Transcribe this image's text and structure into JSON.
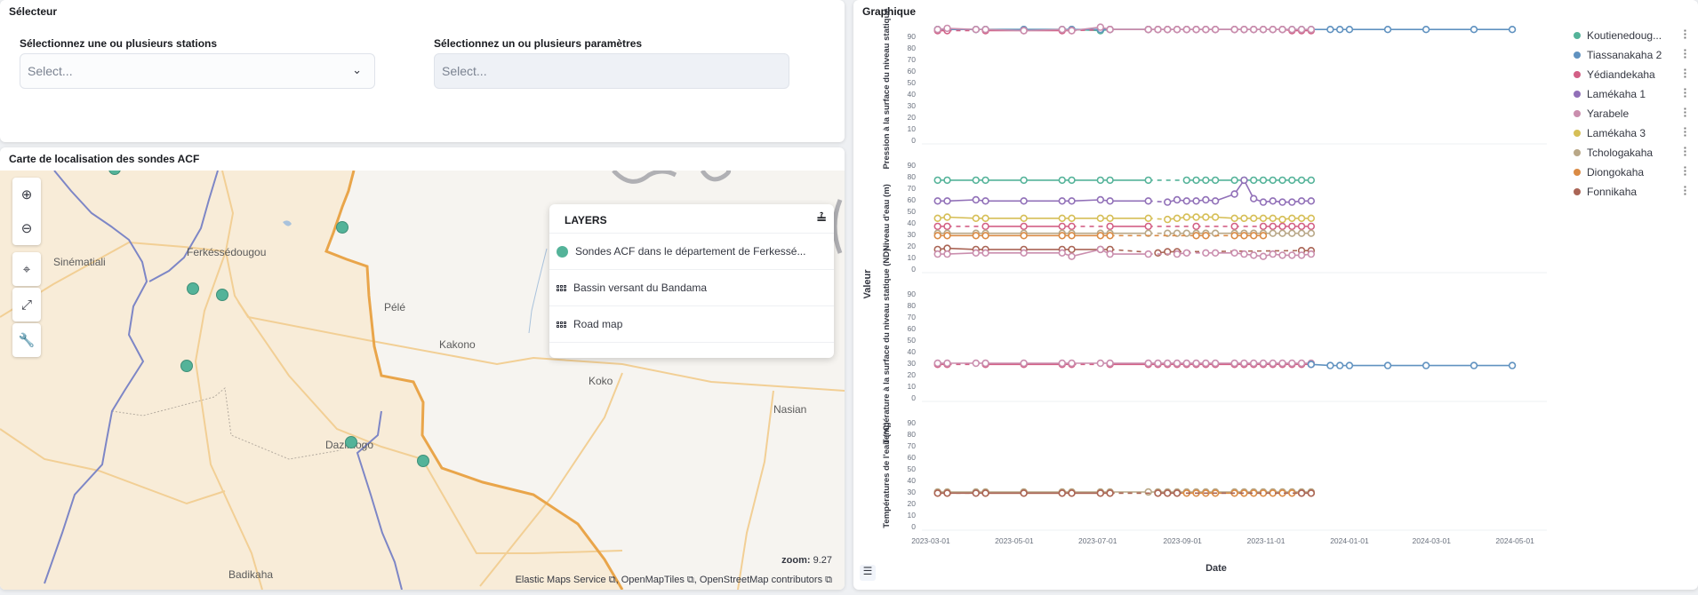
{
  "selector": {
    "title": "Sélecteur",
    "stations_label": "Sélectionnez une ou plusieurs stations",
    "stations_placeholder": "Select...",
    "params_label": "Sélectionnez un ou plusieurs paramètres",
    "params_placeholder": "Select..."
  },
  "map": {
    "title": "Carte de localisation des sondes ACF",
    "places": [
      "Sinématiali",
      "Ferkéssédougou",
      "Pélé",
      "Kakono",
      "Koko",
      "Nasian",
      "Dazimogo",
      "Badikaha"
    ],
    "layers_title": "LAYERS",
    "layers": [
      "Sondes ACF dans le département de Ferkessé...",
      "Bassin versant du Bandama",
      "Road map"
    ],
    "zoom_label": "zoom:",
    "zoom_value": "9.27",
    "attribution": [
      "Elastic Maps Service",
      "OpenMapTiles",
      "OpenStreetMap contributors"
    ],
    "point_color": "#54b399"
  },
  "graph": {
    "title": "Graphique"
  },
  "chart_data": {
    "type": "line",
    "xlabel": "Date",
    "ylabel": "Valeur",
    "xticks": [
      "2023-03-01",
      "2023-05-01",
      "2023-07-01",
      "2023-09-01",
      "2023-11-01",
      "2024-01-01",
      "2024-03-01",
      "2024-05-01"
    ],
    "xlim": [
      "2023-03-01",
      "2024-05-01"
    ],
    "dates": [
      "2023-03-06",
      "2023-03-13",
      "2023-04-03",
      "2023-04-10",
      "2023-05-08",
      "2023-06-05",
      "2023-06-12",
      "2023-07-03",
      "2023-07-10",
      "2023-08-07",
      "2023-08-14",
      "2023-08-21",
      "2023-08-28",
      "2023-09-04",
      "2023-09-11",
      "2023-09-18",
      "2023-09-25",
      "2023-10-09",
      "2023-10-16",
      "2023-10-23",
      "2023-10-30",
      "2023-11-06",
      "2023-11-13",
      "2023-11-20",
      "2023-11-27",
      "2023-12-04",
      "2023-12-18",
      "2023-12-25",
      "2024-01-01",
      "2024-01-29",
      "2024-02-26",
      "2024-04-01",
      "2024-04-29"
    ],
    "yticks": [
      0,
      10,
      20,
      30,
      40,
      50,
      60,
      70,
      80,
      90
    ],
    "legend": [
      {
        "name": "Koutienedoug...",
        "color": "#54b399"
      },
      {
        "name": "Tiassanakaha 2",
        "color": "#6092c0"
      },
      {
        "name": "Yédiandekaha",
        "color": "#d36086"
      },
      {
        "name": "Lamékaha 1",
        "color": "#9170b8"
      },
      {
        "name": "Yarabele",
        "color": "#ca8eae"
      },
      {
        "name": "Lamékaha 3",
        "color": "#d6bf57"
      },
      {
        "name": "Tchologakaha",
        "color": "#b9a888"
      },
      {
        "name": "Diongokaha",
        "color": "#da8b45"
      },
      {
        "name": "Fonnikaha",
        "color": "#aa6556"
      }
    ],
    "panels": [
      {
        "ylabel": "Pression à la surface du niveau statique",
        "ylim": [
          0,
          95
        ],
        "series": [
          {
            "name": "Koutienedoug...",
            "color": "#54b399",
            "values": [
              96,
              96,
              96,
              96,
              96,
              96,
              96,
              95,
              96,
              96
            ]
          },
          {
            "name": "Tiassanakaha 2",
            "color": "#6092c0",
            "values": [
              96,
              96,
              96,
              96,
              96,
              96,
              96,
              96,
              96,
              96,
              96,
              96,
              96,
              96,
              96,
              96,
              96,
              96,
              96,
              96,
              96,
              96,
              96,
              96,
              96,
              96,
              96,
              96,
              96,
              96,
              96,
              96,
              96
            ]
          },
          {
            "name": "Yédiandekaha",
            "color": "#d36086",
            "values": [
              95,
              95,
              null,
              95,
              95,
              95,
              95,
              null,
              96,
              96,
              96,
              96,
              96,
              96,
              96,
              96,
              96,
              96,
              96,
              96,
              96,
              96,
              96,
              95,
              95,
              95
            ]
          },
          {
            "name": "Yarabele",
            "color": "#ca8eae",
            "values": [
              96,
              97,
              96,
              96,
              95,
              96,
              95,
              98,
              96,
              96,
              96,
              96,
              96,
              96,
              96,
              96,
              96,
              96,
              96,
              96,
              96,
              96,
              96,
              96,
              96,
              96
            ]
          }
        ]
      },
      {
        "ylabel": "Niveau d'eau (m)",
        "ylim": [
          0,
          95
        ],
        "series": [
          {
            "name": "Koutienedoug...",
            "color": "#54b399",
            "values": [
              77,
              77,
              77,
              77,
              77,
              77,
              77,
              77,
              77,
              77,
              null,
              null,
              null,
              77,
              77,
              77,
              77,
              77,
              77,
              77,
              77,
              77,
              77,
              77,
              77,
              77
            ]
          },
          {
            "name": "Lamékaha 1",
            "color": "#9170b8",
            "values": [
              59,
              59,
              60,
              59,
              59,
              59,
              59,
              60,
              59,
              59,
              null,
              58,
              60,
              59,
              59,
              60,
              59,
              65,
              77,
              61,
              58,
              59,
              58,
              58,
              59,
              59
            ]
          },
          {
            "name": "Lamékaha 3",
            "color": "#d6bf57",
            "values": [
              44,
              45,
              44,
              44,
              44,
              44,
              44,
              44,
              44,
              44,
              null,
              43,
              44,
              45,
              45,
              45,
              45,
              44,
              44,
              44,
              44,
              44,
              43,
              44,
              44,
              44
            ]
          },
          {
            "name": "Yédiandekaha",
            "color": "#d36086",
            "values": [
              37,
              37,
              null,
              37,
              37,
              37,
              37,
              null,
              37,
              37,
              null,
              null,
              null,
              null,
              37,
              null,
              null,
              37,
              null,
              null,
              37,
              37,
              37,
              37,
              37,
              37
            ]
          },
          {
            "name": "Tchologakaha",
            "color": "#b9a888",
            "values": [
              31,
              31,
              31,
              31,
              31,
              31,
              31,
              31,
              31,
              31,
              null,
              31,
              31,
              31,
              31,
              31,
              31,
              31,
              31,
              31,
              31,
              31,
              31,
              31,
              31,
              31
            ]
          },
          {
            "name": "Diongokaha",
            "color": "#da8b45",
            "values": [
              29,
              29,
              29,
              29,
              29,
              29,
              29,
              29,
              29,
              null,
              null,
              null,
              null,
              null,
              29,
              29,
              null,
              29,
              29,
              29,
              29
            ]
          },
          {
            "name": "Fonnikaha",
            "color": "#aa6556",
            "values": [
              17,
              18,
              17,
              17,
              17,
              17,
              17,
              17,
              17,
              null,
              14,
              15,
              15,
              null,
              null,
              null,
              null,
              null,
              null,
              null,
              null,
              null,
              null,
              null,
              16,
              16
            ]
          },
          {
            "name": "Yarabele",
            "color": "#ca8eae",
            "values": [
              13,
              13,
              14,
              14,
              14,
              14,
              11,
              17,
              13,
              13,
              null,
              null,
              13,
              14,
              null,
              14,
              14,
              14,
              13,
              12,
              11,
              13,
              12,
              12,
              12,
              13
            ]
          }
        ]
      },
      {
        "ylabel": "Température à la surface du niveau statique (ND)",
        "ylim": [
          0,
          95
        ],
        "series": [
          {
            "name": "Yédiandekaha",
            "color": "#d36086",
            "values": [
              29,
              29,
              null,
              29,
              29,
              29,
              29,
              null,
              29,
              29,
              29,
              29,
              29,
              29,
              29,
              29,
              29,
              29,
              29,
              29,
              29,
              29,
              29,
              29,
              29,
              29
            ]
          },
          {
            "name": "Yarabele",
            "color": "#ca8eae",
            "values": [
              30,
              30,
              30,
              30,
              30,
              30,
              30,
              30,
              30,
              30,
              30,
              30,
              30,
              30,
              30,
              30,
              30,
              30,
              30,
              30,
              30,
              30,
              30,
              30,
              30,
              30
            ]
          },
          {
            "name": "Tiassanakaha 2",
            "color": "#6092c0",
            "values": [
              null,
              null,
              null,
              null,
              null,
              null,
              null,
              null,
              null,
              null,
              null,
              null,
              null,
              null,
              null,
              null,
              null,
              null,
              null,
              null,
              null,
              null,
              null,
              null,
              null,
              29,
              28,
              28,
              28,
              28,
              28,
              28,
              28
            ]
          }
        ]
      },
      {
        "ylabel": "Températures de l'eau (°C)",
        "ylim": [
          0,
          95
        ],
        "series": [
          {
            "name": "Tchologakaha",
            "color": "#b9a888",
            "values": [
              30,
              30,
              30,
              30,
              30,
              30,
              30,
              30,
              30,
              30,
              30,
              30,
              30,
              30,
              30,
              30,
              30,
              30,
              30,
              30,
              30,
              30,
              30,
              30,
              30,
              30
            ]
          },
          {
            "name": "Diongokaha",
            "color": "#da8b45",
            "values": [
              29,
              29,
              null,
              29,
              29,
              29,
              29,
              29,
              29,
              null,
              29,
              29,
              29,
              29,
              29,
              29,
              29,
              29,
              29,
              29,
              29,
              29,
              29,
              29,
              29,
              29
            ]
          },
          {
            "name": "Fonnikaha",
            "color": "#aa6556",
            "values": [
              29,
              29,
              29,
              29,
              29,
              29,
              29,
              29,
              29,
              null,
              29,
              29,
              29,
              null,
              null,
              null,
              null,
              null,
              null,
              null,
              null,
              null,
              null,
              null,
              29,
              29
            ]
          }
        ]
      }
    ]
  }
}
